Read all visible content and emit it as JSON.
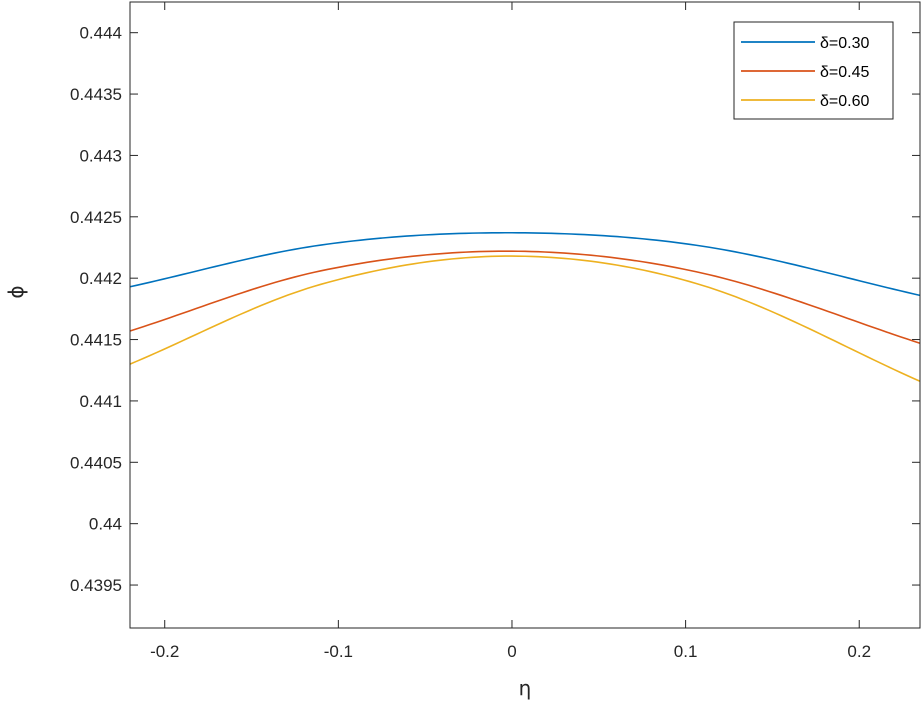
{
  "chart_data": {
    "type": "line",
    "xlabel": "η",
    "ylabel": "ϕ",
    "xlim": [
      -0.22,
      0.235
    ],
    "ylim": [
      0.43915,
      0.44425
    ],
    "x_ticks": [
      -0.2,
      -0.1,
      0,
      0.1,
      0.2
    ],
    "x_tick_labels": [
      "-0.2",
      "-0.1",
      "0",
      "0.1",
      "0.2"
    ],
    "y_ticks": [
      0.4395,
      0.44,
      0.4405,
      0.441,
      0.4415,
      0.442,
      0.4425,
      0.443,
      0.4435,
      0.444
    ],
    "y_tick_labels": [
      "0.4395",
      "0.44",
      "0.4405",
      "0.441",
      "0.4415",
      "0.442",
      "0.4425",
      "0.443",
      "0.4435",
      "0.444"
    ],
    "grid": false,
    "legend_position": "top-right",
    "series": [
      {
        "name": "δ=0.30",
        "color": "#0072BD",
        "peak_x": 0.0,
        "x": [
          -0.22,
          -0.11,
          0.0,
          0.11,
          0.235
        ],
        "y": [
          0.44193,
          0.44227,
          0.44237,
          0.44226,
          0.44186
        ]
      },
      {
        "name": "δ=0.45",
        "color": "#D95319",
        "peak_x": 0.0,
        "x": [
          -0.22,
          -0.11,
          0.0,
          0.11,
          0.235
        ],
        "y": [
          0.44157,
          0.44206,
          0.44222,
          0.44204,
          0.44147
        ]
      },
      {
        "name": "δ=0.60",
        "color": "#EDB120",
        "peak_x": 0.0,
        "x": [
          -0.22,
          -0.11,
          0.0,
          0.11,
          0.235
        ],
        "y": [
          0.4413,
          0.44195,
          0.44218,
          0.44194,
          0.44116
        ]
      }
    ]
  }
}
